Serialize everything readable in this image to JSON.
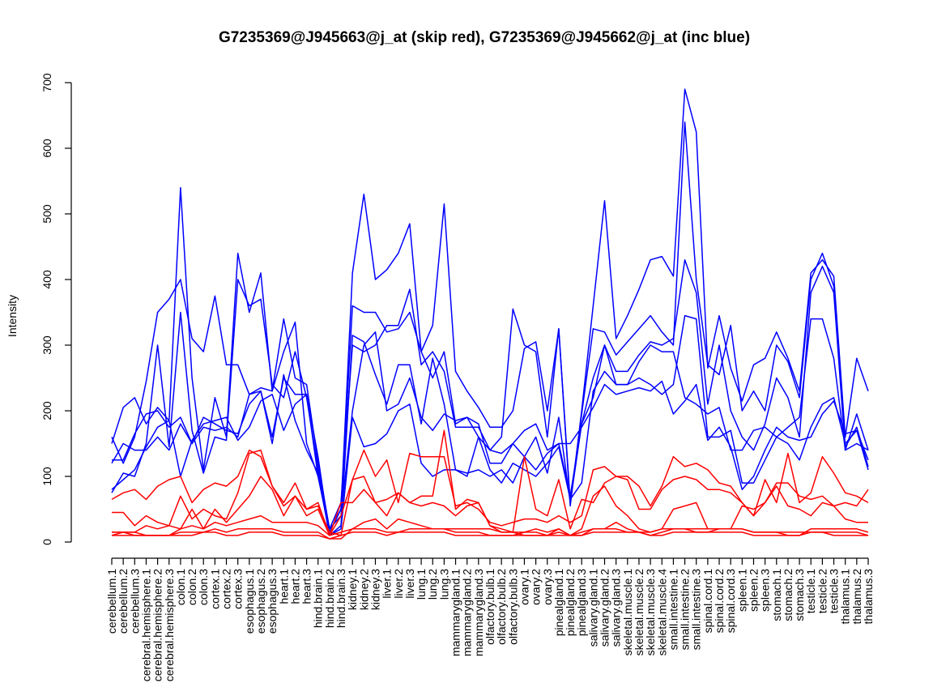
{
  "chart_data": {
    "type": "line",
    "title": "G7235369@J945663@j_at (skip red), G7235369@J945662@j_at (inc blue)",
    "ylabel": "Intensity",
    "xlabel": "",
    "ylim": [
      0,
      700
    ],
    "yticks": [
      0,
      100,
      200,
      300,
      400,
      500,
      600,
      700
    ],
    "grid": false,
    "categories": [
      "cerebellum.1",
      "cerebellum.2",
      "cerebellum.3",
      "cerebral.hemisphere.1",
      "cerebral.hemisphere.2",
      "cerebral.hemisphere.3",
      "colon.1",
      "colon.2",
      "colon.3",
      "cortex.1",
      "cortex.2",
      "cortex.3",
      "esophagus.1",
      "esophagus.2",
      "esophagus.3",
      "heart.1",
      "heart.2",
      "heart.3",
      "hind.brain.1",
      "hind.brain.2",
      "hind.brain.3",
      "kidney.1",
      "kidney.2",
      "kidney.3",
      "liver.1",
      "liver.2",
      "liver.3",
      "lung.1",
      "lung.2",
      "lung.3",
      "mammarygland.1",
      "mammarygland.2",
      "mammarygland.3",
      "olfactory.bulb.1",
      "olfactory.bulb.2",
      "olfactory.bulb.3",
      "ovary.1",
      "ovary.2",
      "ovary.3",
      "pinealgland.1",
      "pinealgland.2",
      "pinealgland.3",
      "salivary.gland.1",
      "salivary.gland.2",
      "salivary.gland.3",
      "skeletal.muscle.1",
      "skeletal.muscle.2",
      "skeletal.muscle.3",
      "skeletal.muscle.4",
      "small.intestine.1",
      "small.intestine.2",
      "small.intestine.3",
      "spinal.cord.1",
      "spinal.cord.2",
      "spinal.cord.3",
      "spleen.1",
      "spleen.2",
      "spleen.3",
      "stomach.1",
      "stomach.2",
      "stomach.3",
      "testicle.1",
      "testicle.2",
      "testicle.3",
      "thalamus.1",
      "thalamus.2",
      "thalamus.3"
    ],
    "colors": {
      "skip": "#ff0000",
      "inc": "#0000ff"
    },
    "series": [
      {
        "group": "inc",
        "values": [
          150,
          205,
          220,
          180,
          205,
          185,
          540,
          250,
          110,
          220,
          160,
          440,
          350,
          410,
          230,
          290,
          335,
          150,
          100,
          15,
          50,
          410,
          530,
          400,
          415,
          440,
          485,
          290,
          330,
          515,
          260,
          230,
          205,
          175,
          175,
          200,
          295,
          305,
          200,
          325,
          55,
          200,
          360,
          520,
          310,
          345,
          385,
          430,
          435,
          405,
          690,
          625,
          265,
          345,
          265,
          215,
          270,
          280,
          320,
          280,
          230,
          410,
          430,
          405,
          160,
          280,
          230
        ]
      },
      {
        "group": "inc",
        "values": [
          160,
          120,
          160,
          245,
          350,
          370,
          400,
          310,
          290,
          375,
          270,
          270,
          225,
          235,
          230,
          340,
          250,
          240,
          120,
          20,
          60,
          300,
          290,
          300,
          330,
          330,
          385,
          270,
          290,
          260,
          175,
          175,
          175,
          140,
          160,
          355,
          300,
          290,
          160,
          325,
          60,
          195,
          325,
          320,
          285,
          305,
          325,
          345,
          320,
          300,
          640,
          400,
          270,
          255,
          330,
          200,
          230,
          200,
          300,
          275,
          220,
          400,
          440,
          390,
          145,
          175,
          115
        ]
      },
      {
        "group": "inc",
        "values": [
          75,
          105,
          100,
          150,
          300,
          145,
          350,
          170,
          105,
          160,
          155,
          400,
          360,
          370,
          240,
          220,
          290,
          220,
          110,
          15,
          50,
          360,
          350,
          350,
          320,
          325,
          350,
          290,
          250,
          290,
          180,
          190,
          180,
          120,
          120,
          150,
          130,
          160,
          105,
          190,
          60,
          180,
          250,
          300,
          260,
          260,
          285,
          305,
          300,
          310,
          430,
          380,
          210,
          300,
          200,
          160,
          140,
          180,
          250,
          220,
          160,
          380,
          420,
          380,
          140,
          195,
          140
        ]
      },
      {
        "group": "inc",
        "values": [
          120,
          150,
          140,
          140,
          160,
          140,
          180,
          150,
          175,
          170,
          175,
          160,
          225,
          230,
          160,
          250,
          225,
          225,
          100,
          20,
          40,
          200,
          300,
          320,
          200,
          210,
          250,
          190,
          170,
          195,
          185,
          190,
          160,
          140,
          135,
          150,
          170,
          180,
          140,
          150,
          70,
          180,
          220,
          300,
          240,
          240,
          275,
          300,
          290,
          290,
          220,
          210,
          195,
          205,
          140,
          140,
          170,
          175,
          160,
          175,
          190,
          340,
          340,
          280,
          140,
          150,
          140
        ]
      },
      {
        "group": "inc",
        "values": [
          125,
          125,
          165,
          195,
          200,
          175,
          190,
          150,
          190,
          180,
          170,
          165,
          210,
          230,
          150,
          255,
          185,
          140,
          105,
          10,
          25,
          315,
          305,
          255,
          210,
          270,
          270,
          180,
          280,
          210,
          110,
          100,
          160,
          110,
          90,
          120,
          110,
          100,
          120,
          145,
          65,
          90,
          230,
          260,
          240,
          240,
          250,
          240,
          225,
          240,
          345,
          340,
          160,
          160,
          170,
          90,
          90,
          125,
          160,
          150,
          125,
          175,
          210,
          220,
          150,
          170,
          125
        ]
      },
      {
        "group": "inc",
        "values": [
          80,
          95,
          110,
          145,
          175,
          185,
          100,
          155,
          180,
          185,
          190,
          155,
          175,
          215,
          225,
          170,
          210,
          225,
          130,
          10,
          20,
          190,
          145,
          150,
          165,
          200,
          210,
          120,
          100,
          110,
          110,
          105,
          110,
          100,
          110,
          90,
          130,
          110,
          135,
          150,
          150,
          175,
          205,
          240,
          225,
          230,
          235,
          230,
          245,
          195,
          215,
          240,
          155,
          175,
          145,
          80,
          100,
          140,
          175,
          160,
          155,
          160,
          195,
          215,
          165,
          170,
          110
        ]
      },
      {
        "group": "skip",
        "values": [
          15,
          15,
          15,
          25,
          20,
          25,
          20,
          25,
          20,
          30,
          25,
          30,
          35,
          40,
          30,
          30,
          30,
          30,
          25,
          10,
          15,
          20,
          30,
          35,
          20,
          35,
          30,
          25,
          20,
          20,
          20,
          20,
          20,
          20,
          15,
          15,
          10,
          10,
          10,
          20,
          10,
          10,
          20,
          20,
          30,
          20,
          15,
          15,
          20,
          20,
          20,
          15,
          15,
          20,
          20,
          20,
          15,
          15,
          15,
          15,
          15,
          15,
          15,
          15,
          15,
          15,
          10
        ]
      },
      {
        "group": "skip",
        "values": [
          45,
          45,
          25,
          40,
          30,
          25,
          70,
          35,
          50,
          40,
          35,
          75,
          135,
          140,
          85,
          55,
          70,
          50,
          60,
          10,
          60,
          60,
          80,
          60,
          65,
          75,
          60,
          55,
          60,
          55,
          40,
          55,
          60,
          25,
          20,
          15,
          130,
          50,
          40,
          95,
          20,
          65,
          60,
          90,
          100,
          95,
          50,
          50,
          80,
          95,
          100,
          95,
          80,
          80,
          75,
          60,
          40,
          95,
          60,
          135,
          60,
          75,
          130,
          105,
          75,
          70,
          60
        ]
      },
      {
        "group": "skip",
        "values": [
          15,
          15,
          10,
          10,
          10,
          10,
          20,
          50,
          20,
          50,
          30,
          50,
          70,
          100,
          80,
          40,
          70,
          40,
          50,
          10,
          40,
          95,
          100,
          60,
          40,
          75,
          60,
          70,
          70,
          170,
          50,
          65,
          60,
          25,
          15,
          15,
          15,
          20,
          15,
          20,
          10,
          20,
          70,
          85,
          55,
          40,
          20,
          15,
          20,
          50,
          55,
          60,
          20,
          20,
          20,
          55,
          50,
          60,
          85,
          55,
          50,
          40,
          60,
          55,
          35,
          30,
          30
        ]
      },
      {
        "group": "skip",
        "values": [
          65,
          75,
          80,
          65,
          85,
          95,
          100,
          60,
          80,
          90,
          85,
          100,
          140,
          130,
          85,
          60,
          90,
          50,
          55,
          15,
          10,
          95,
          140,
          100,
          125,
          60,
          135,
          130,
          130,
          130,
          55,
          60,
          50,
          30,
          25,
          30,
          35,
          35,
          30,
          40,
          30,
          40,
          110,
          115,
          100,
          100,
          85,
          55,
          85,
          130,
          115,
          120,
          110,
          90,
          85,
          60,
          40,
          60,
          90,
          90,
          70,
          65,
          70,
          55,
          60,
          55,
          80
        ]
      },
      {
        "group": "skip",
        "values": [
          10,
          10,
          10,
          10,
          10,
          10,
          15,
          15,
          15,
          15,
          10,
          10,
          15,
          15,
          15,
          10,
          10,
          10,
          10,
          5,
          10,
          15,
          15,
          15,
          10,
          15,
          15,
          15,
          15,
          15,
          10,
          10,
          10,
          10,
          10,
          10,
          10,
          10,
          10,
          10,
          10,
          10,
          15,
          15,
          15,
          15,
          15,
          10,
          10,
          15,
          15,
          15,
          15,
          15,
          15,
          15,
          10,
          10,
          10,
          10,
          10,
          15,
          15,
          10,
          10,
          10,
          10
        ]
      },
      {
        "group": "skip",
        "values": [
          10,
          15,
          15,
          10,
          10,
          10,
          10,
          10,
          15,
          20,
          15,
          20,
          20,
          20,
          20,
          15,
          15,
          15,
          15,
          5,
          5,
          20,
          20,
          20,
          15,
          15,
          20,
          20,
          20,
          20,
          15,
          15,
          15,
          10,
          10,
          10,
          15,
          15,
          10,
          15,
          10,
          15,
          20,
          20,
          20,
          15,
          15,
          10,
          15,
          20,
          20,
          20,
          20,
          20,
          20,
          20,
          15,
          15,
          15,
          10,
          10,
          20,
          20,
          20,
          20,
          20,
          15
        ]
      }
    ]
  }
}
